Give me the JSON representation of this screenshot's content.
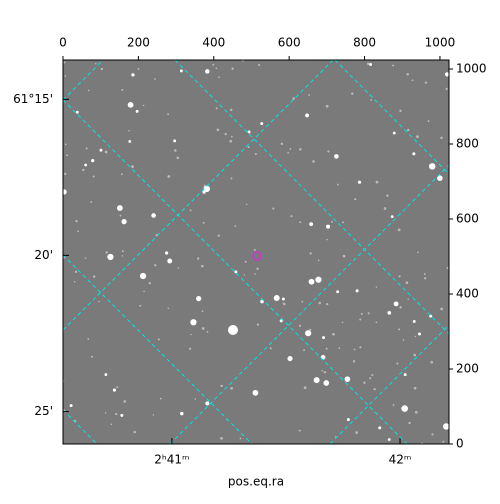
{
  "chart_data": {
    "type": "image",
    "xlabel": "pos.eq.ra",
    "xlim": [
      0,
      1024
    ],
    "xticks": [
      0,
      200,
      400,
      600,
      800,
      1000
    ],
    "ylim": [
      0,
      1024
    ],
    "yticks": [
      0,
      200,
      400,
      600,
      800,
      1000
    ],
    "ra_lim": [
      2.67537,
      2.70358
    ],
    "ra_ticks": [
      {
        "value": 2.68333,
        "label": "2ʰ41ᵐ"
      },
      {
        "value": 2.7,
        "label": "42ᵐ"
      }
    ],
    "dec_lim": [
      61.434,
      61.229
    ],
    "dec_ticks": [
      {
        "value": 61.25,
        "label": "61°15'"
      },
      {
        "value": 61.3333,
        "label": "20'"
      },
      {
        "value": 61.4167,
        "label": "25'"
      }
    ],
    "grid_color": "#00e5e5"
  }
}
